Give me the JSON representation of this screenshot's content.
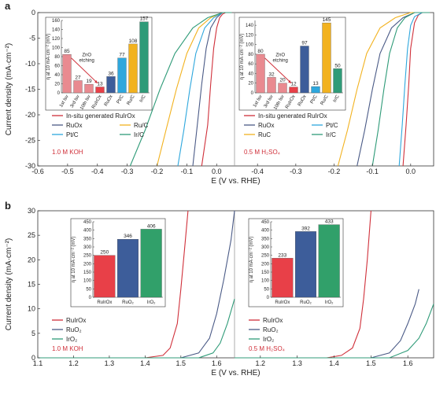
{
  "panel_a": {
    "label": "a",
    "ylabel": "Current density (mA·cm⁻²)",
    "xlabel": "E (V vs. RHE)",
    "yticks": [
      "0",
      "-5",
      "-10",
      "-15",
      "-20",
      "-25",
      "-30"
    ],
    "xticks_left": [
      "-0.6",
      "-0.5",
      "-0.4",
      "-0.3",
      "-0.2",
      "-0.1",
      "0.0"
    ],
    "xticks_right": [
      "-0.4",
      "-0.3",
      "-0.2",
      "-0.1",
      "0.0"
    ],
    "left": {
      "condition": "1.0 M KOH",
      "legend": [
        "In-situ generated RuIrOx",
        "RuOx",
        "Ru/C",
        "Pt/C",
        "Ir/C"
      ],
      "inset": {
        "ylabel": "η at 10 mA·cm⁻² (mV)",
        "yticks": [
          "0",
          "20",
          "40",
          "60",
          "80",
          "100",
          "120",
          "140",
          "160"
        ],
        "annotation": "ZnO etching",
        "categories": [
          "1st lsv",
          "3rd lsv",
          "10th lsv",
          "RuIrOx",
          "RuOx",
          "Pt/C",
          "Ru/C",
          "Ir/C"
        ],
        "values": [
          85,
          27,
          19,
          13,
          36,
          77,
          108,
          157
        ],
        "labels": [
          "85",
          "27",
          "19",
          "13",
          "36",
          "77",
          "108",
          "157"
        ]
      }
    },
    "right": {
      "condition": "0.5 M H₂SO₄",
      "legend": [
        "In-situ generated RuIrOx",
        "RuOx",
        "Pt/C",
        "RuC",
        "Ir/C"
      ],
      "inset": {
        "ylabel": "η at 10 mA·cm⁻² (mV)",
        "yticks": [
          "0",
          "20",
          "40",
          "60",
          "80",
          "100",
          "120",
          "140"
        ],
        "annotation": "ZnO etching",
        "categories": [
          "1st lsv",
          "3rd lsv",
          "10th lsv",
          "RuIrOx",
          "RuOx",
          "Pt/C",
          "Ru/C",
          "Ir/C"
        ],
        "values": [
          80,
          32,
          20,
          12,
          97,
          13,
          145,
          50
        ],
        "labels": [
          "80",
          "32",
          "20",
          "12",
          "97",
          "13",
          "145",
          "50"
        ]
      }
    }
  },
  "panel_b": {
    "label": "b",
    "ylabel": "Current density (mA·cm⁻²)",
    "xlabel": "E (V vs. RHE)",
    "yticks": [
      "0",
      "5",
      "10",
      "15",
      "20",
      "25",
      "30"
    ],
    "xticks_left": [
      "1.1",
      "1.2",
      "1.3",
      "1.4",
      "1.5",
      "1.6"
    ],
    "xticks_right": [
      "1.2",
      "1.3",
      "1.4",
      "1.5",
      "1.6"
    ],
    "left": {
      "condition": "1.0 M KOH",
      "legend": [
        "RuIrOx",
        "RuO₂",
        "IrO₂"
      ],
      "inset": {
        "ylabel": "η at 10 mA·cm⁻² (mV)",
        "yticks": [
          "0",
          "50",
          "100",
          "150",
          "200",
          "250",
          "300",
          "350",
          "400",
          "450"
        ],
        "categories": [
          "RuIrOx",
          "RuO₂",
          "IrO₂"
        ],
        "values": [
          250,
          346,
          406
        ],
        "labels": [
          "250",
          "346",
          "406"
        ]
      }
    },
    "right": {
      "condition": "0.5 M H₂SO₄",
      "legend": [
        "RuIrOx",
        "RuO₂",
        "IrO₂"
      ],
      "inset": {
        "ylabel": "η at 10 mA·cm⁻² (mV)",
        "yticks": [
          "0",
          "50",
          "100",
          "150",
          "200",
          "250",
          "300",
          "350",
          "400",
          "450"
        ],
        "categories": [
          "RuIrOx",
          "RuO₂",
          "IrO₂"
        ],
        "values": [
          233,
          392,
          433
        ],
        "labels": [
          "233",
          "392",
          "433"
        ]
      }
    }
  },
  "colors": {
    "ruirox": "#d0303a",
    "ruox": "#4a5a86",
    "ruc": "#f2b21f",
    "ptc": "#2ea7dd",
    "irc": "#2f9b78",
    "bar_red": "#e84048",
    "bar_pink": "#e98a90",
    "bar_blue": "#3d5d9a",
    "bar_green": "#31a06a"
  },
  "chart_data": [
    {
      "type": "line",
      "panel": "a-left",
      "xlabel": "E (V vs. RHE)",
      "ylabel": "Current density (mA·cm⁻²)",
      "xlim": [
        -0.6,
        0.06
      ],
      "ylim": [
        -30,
        0
      ],
      "series": [
        {
          "name": "In-situ generated RuIrOx",
          "x": [
            -0.05,
            -0.03,
            -0.02,
            -0.01,
            0.0,
            0.01,
            0.02,
            0.03,
            0.05
          ],
          "y": [
            -30,
            -22,
            -14,
            -7,
            -3,
            -1,
            -0.3,
            0,
            0
          ]
        },
        {
          "name": "RuOx",
          "x": [
            -0.08,
            -0.065,
            -0.05,
            -0.035,
            -0.02,
            0.0,
            0.02,
            0.05
          ],
          "y": [
            -30,
            -22,
            -14,
            -7,
            -3,
            -1,
            0,
            0
          ]
        },
        {
          "name": "Ru/C",
          "x": [
            -0.2,
            -0.17,
            -0.135,
            -0.1,
            -0.06,
            -0.02,
            0.02,
            0.05
          ],
          "y": [
            -30,
            -23,
            -15,
            -8,
            -3,
            -1,
            0,
            0
          ]
        },
        {
          "name": "Pt/C",
          "x": [
            -0.13,
            -0.11,
            -0.09,
            -0.07,
            -0.04,
            -0.01,
            0.02,
            0.05
          ],
          "y": [
            -30,
            -23,
            -15,
            -8,
            -3,
            -1,
            0,
            0
          ]
        },
        {
          "name": "Ir/C",
          "x": [
            -0.29,
            -0.24,
            -0.19,
            -0.14,
            -0.08,
            -0.03,
            0.02,
            0.05
          ],
          "y": [
            -30,
            -23,
            -15,
            -8,
            -3,
            -1,
            0,
            0
          ]
        }
      ]
    },
    {
      "type": "line",
      "panel": "a-right",
      "xlabel": "E (V vs. RHE)",
      "ylabel": "Current density (mA·cm⁻²)",
      "xlim": [
        -0.46,
        0.06
      ],
      "ylim": [
        -30,
        0
      ],
      "series": [
        {
          "name": "In-situ generated RuIrOx",
          "x": [
            -0.02,
            -0.012,
            -0.005,
            0.0,
            0.01,
            0.02,
            0.03,
            0.05
          ],
          "y": [
            -30,
            -22,
            -14,
            -7,
            -2,
            -0.5,
            0,
            0
          ]
        },
        {
          "name": "RuOx",
          "x": [
            -0.14,
            -0.12,
            -0.1,
            -0.08,
            -0.05,
            -0.02,
            0.01,
            0.05
          ],
          "y": [
            -30,
            -23,
            -15,
            -8,
            -3,
            -1,
            0,
            0
          ]
        },
        {
          "name": "Pt/C",
          "x": [
            -0.03,
            -0.022,
            -0.015,
            -0.008,
            0.0,
            0.01,
            0.03,
            0.05
          ],
          "y": [
            -30,
            -22,
            -14,
            -7,
            -2.5,
            -0.8,
            0,
            0
          ]
        },
        {
          "name": "RuC",
          "x": [
            -0.19,
            -0.165,
            -0.14,
            -0.115,
            -0.08,
            -0.04,
            0.0,
            0.05
          ],
          "y": [
            -30,
            -23,
            -15,
            -8,
            -3,
            -1,
            0,
            0
          ]
        },
        {
          "name": "Ir/C",
          "x": [
            -0.1,
            -0.085,
            -0.07,
            -0.055,
            -0.035,
            -0.015,
            0.01,
            0.05
          ],
          "y": [
            -30,
            -23,
            -15,
            -8,
            -3,
            -1,
            0,
            0
          ]
        }
      ]
    },
    {
      "type": "line",
      "panel": "b-left",
      "xlabel": "E (V vs. RHE)",
      "ylabel": "Current density (mA·cm⁻²)",
      "xlim": [
        1.1,
        1.65
      ],
      "ylim": [
        0,
        30
      ],
      "series": [
        {
          "name": "RuIrOx",
          "x": [
            1.1,
            1.4,
            1.45,
            1.47,
            1.49,
            1.5,
            1.51,
            1.52
          ],
          "y": [
            0,
            0,
            0.5,
            2,
            7,
            14,
            22,
            30
          ]
        },
        {
          "name": "RuO₂",
          "x": [
            1.1,
            1.5,
            1.55,
            1.58,
            1.6,
            1.62,
            1.64,
            1.65
          ],
          "y": [
            0,
            0,
            1,
            4,
            9,
            16,
            24,
            30
          ]
        },
        {
          "name": "IrO₂",
          "x": [
            1.1,
            1.55,
            1.59,
            1.61,
            1.63,
            1.65
          ],
          "y": [
            0,
            0,
            1,
            3,
            7,
            12
          ]
        }
      ]
    },
    {
      "type": "line",
      "panel": "b-right",
      "xlabel": "E (V vs. RHE)",
      "ylabel": "Current density (mA·cm⁻²)",
      "xlim": [
        1.13,
        1.67
      ],
      "ylim": [
        0,
        30
      ],
      "series": [
        {
          "name": "RuIrOx",
          "x": [
            1.13,
            1.38,
            1.42,
            1.45,
            1.47,
            1.48,
            1.49,
            1.5
          ],
          "y": [
            0,
            0,
            0.5,
            2,
            6,
            12,
            20,
            30
          ]
        },
        {
          "name": "RuO₂",
          "x": [
            1.13,
            1.5,
            1.55,
            1.58,
            1.6,
            1.62,
            1.63
          ],
          "y": [
            0,
            0,
            1,
            3.5,
            7,
            11,
            14
          ]
        },
        {
          "name": "IrO₂",
          "x": [
            1.13,
            1.55,
            1.6,
            1.63,
            1.65,
            1.67
          ],
          "y": [
            0,
            0,
            1.5,
            4,
            7,
            11
          ]
        }
      ]
    },
    {
      "type": "bar",
      "panel": "a-left-inset",
      "ylabel": "η at 10 mA·cm⁻² (mV)",
      "ylim": [
        0,
        160
      ],
      "categories": [
        "1st lsv",
        "3rd lsv",
        "10th lsv",
        "RuIrOx",
        "RuOx",
        "Pt/C",
        "Ru/C",
        "Ir/C"
      ],
      "values": [
        85,
        27,
        19,
        13,
        36,
        77,
        108,
        157
      ]
    },
    {
      "type": "bar",
      "panel": "a-right-inset",
      "ylabel": "η at 10 mA·cm⁻² (mV)",
      "ylim": [
        0,
        150
      ],
      "categories": [
        "1st lsv",
        "3rd lsv",
        "10th lsv",
        "RuIrOx",
        "RuOx",
        "Pt/C",
        "Ru/C",
        "Ir/C"
      ],
      "values": [
        80,
        32,
        20,
        12,
        97,
        13,
        145,
        50
      ]
    },
    {
      "type": "bar",
      "panel": "b-left-inset",
      "ylabel": "η at 10 mA·cm⁻² (mV)",
      "ylim": [
        0,
        450
      ],
      "categories": [
        "RuIrOx",
        "RuO₂",
        "IrO₂"
      ],
      "values": [
        250,
        346,
        406
      ]
    },
    {
      "type": "bar",
      "panel": "b-right-inset",
      "ylabel": "η at 10 mA·cm⁻² (mV)",
      "ylim": [
        0,
        450
      ],
      "categories": [
        "RuIrOx",
        "RuO₂",
        "IrO₂"
      ],
      "values": [
        233,
        392,
        433
      ]
    }
  ]
}
